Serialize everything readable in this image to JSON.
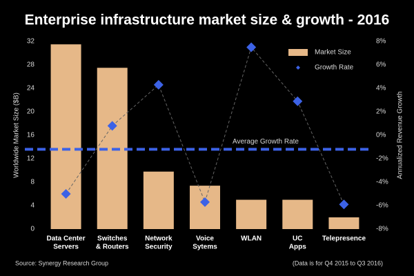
{
  "chart_data": {
    "type": "bar",
    "title": "Enterprise infrastructure market size & growth - 2016",
    "categories": [
      [
        "Data Center",
        "Servers"
      ],
      [
        "Switches",
        "& Routers"
      ],
      [
        "Network",
        "Security"
      ],
      [
        "Voice",
        "Sytems"
      ],
      [
        "WLAN"
      ],
      [
        "UC",
        "Apps"
      ],
      [
        "Telepresence"
      ]
    ],
    "ylabel": "Worldwide Market Size ($B)",
    "y2label": "Annualized Revenue Growth",
    "ylim": [
      0,
      32
    ],
    "yticks": [
      0,
      4,
      8,
      12,
      16,
      20,
      24,
      28,
      32
    ],
    "y2lim": [
      -8,
      8
    ],
    "y2ticks": [
      {
        "value": -8,
        "label": "-8%"
      },
      {
        "value": -6,
        "label": "-6%"
      },
      {
        "value": -4,
        "label": "-4%"
      },
      {
        "value": -2,
        "label": "-2%"
      },
      {
        "value": 0,
        "label": "0%"
      },
      {
        "value": 2,
        "label": "2%"
      },
      {
        "value": 4,
        "label": "4%"
      },
      {
        "value": 6,
        "label": "6%"
      },
      {
        "value": 8,
        "label": "8%"
      }
    ],
    "series": [
      {
        "name": "Market Size",
        "type": "bar",
        "color": "#e6b888",
        "values": [
          31.5,
          27.5,
          9.8,
          7.4,
          5,
          5,
          2
        ]
      },
      {
        "name": "Growth Rate",
        "type": "line",
        "axis": "y2",
        "color": "#3c62e6",
        "values": [
          -5,
          0.8,
          4.3,
          -5.7,
          7.5,
          2.9,
          -5.9
        ]
      }
    ],
    "reference_line": {
      "label": "Average Growth Rate",
      "axis": "y2",
      "value": -1.2,
      "color": "#3c62e6"
    },
    "legend": "upper right",
    "source": "Source: Synergy Research Group",
    "note": "(Data is for Q4 2015 to Q3 2016)"
  }
}
